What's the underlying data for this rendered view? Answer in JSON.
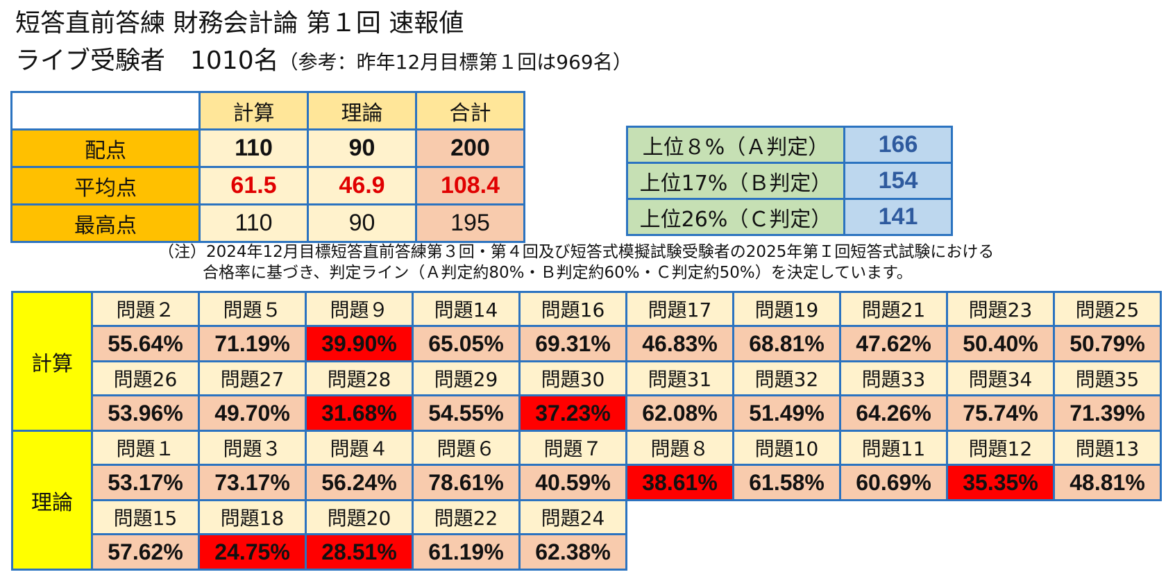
{
  "title": {
    "line1": "短答直前答練 財務会計論 第１回 速報値",
    "line2_main": "ライブ受験者　1010名",
    "line2_ref": "（参考：昨年12月目標第１回は969名）"
  },
  "score_table": {
    "headers": [
      "計算",
      "理論",
      "合計"
    ],
    "rows": [
      {
        "label": "配点",
        "values": [
          "110",
          "90",
          "200"
        ]
      },
      {
        "label": "平均点",
        "values": [
          "61.5",
          "46.9",
          "108.4"
        ]
      },
      {
        "label": "最高点",
        "values": [
          "110",
          "90",
          "195"
        ]
      }
    ]
  },
  "judgement_table": [
    {
      "label": "上位８%（Ａ判定）",
      "score": "166"
    },
    {
      "label": "上位17%（Ｂ判定）",
      "score": "154"
    },
    {
      "label": "上位26%（Ｃ判定）",
      "score": "141"
    }
  ],
  "note": {
    "line1": "（注）2024年12月目標短答直前答練第３回・第４回及び短答式模擬試験受験者の2025年第Ｉ回短答式試験における",
    "line2": "合格率に基づき、判定ライン（Ａ判定約80%・Ｂ判定約60%・Ｃ判定約50%）を決定しています。"
  },
  "rate_table": {
    "sections": [
      {
        "label": "計算",
        "groups": [
          {
            "questions": [
              "問題２",
              "問題５",
              "問題９",
              "問題14",
              "問題16",
              "問題17",
              "問題19",
              "問題21",
              "問題23",
              "問題25"
            ],
            "rates": [
              "55.64%",
              "71.19%",
              "39.90%",
              "65.05%",
              "69.31%",
              "46.83%",
              "68.81%",
              "47.62%",
              "50.40%",
              "50.79%"
            ],
            "low": [
              false,
              false,
              true,
              false,
              false,
              false,
              false,
              false,
              false,
              false
            ]
          },
          {
            "questions": [
              "問題26",
              "問題27",
              "問題28",
              "問題29",
              "問題30",
              "問題31",
              "問題32",
              "問題33",
              "問題34",
              "問題35"
            ],
            "rates": [
              "53.96%",
              "49.70%",
              "31.68%",
              "54.55%",
              "37.23%",
              "62.08%",
              "51.49%",
              "64.26%",
              "75.74%",
              "71.39%"
            ],
            "low": [
              false,
              false,
              true,
              false,
              true,
              false,
              false,
              false,
              false,
              false
            ]
          }
        ]
      },
      {
        "label": "理論",
        "groups": [
          {
            "questions": [
              "問題１",
              "問題３",
              "問題４",
              "問題６",
              "問題７",
              "問題８",
              "問題10",
              "問題11",
              "問題12",
              "問題13"
            ],
            "rates": [
              "53.17%",
              "73.17%",
              "56.24%",
              "78.61%",
              "40.59%",
              "38.61%",
              "61.58%",
              "60.69%",
              "35.35%",
              "48.81%"
            ],
            "low": [
              false,
              false,
              false,
              false,
              false,
              true,
              false,
              false,
              true,
              false
            ]
          },
          {
            "questions": [
              "問題15",
              "問題18",
              "問題20",
              "問題22",
              "問題24"
            ],
            "rates": [
              "57.62%",
              "24.75%",
              "28.51%",
              "61.19%",
              "62.38%"
            ],
            "low": [
              false,
              true,
              true,
              false,
              false
            ]
          }
        ]
      }
    ]
  },
  "colors": {
    "border": "#2b73c0",
    "row_header": "#ffc000",
    "col_header": "#ffe699",
    "cell_light": "#fff2cc",
    "cell_salmon": "#f8cbad",
    "low_rate": "#ff0000",
    "average_text": "#e00000",
    "section_header": "#ffff00",
    "judge_label": "#c6e0b4",
    "judge_value": "#bdd7ee",
    "judge_value_text": "#2e5a9e"
  }
}
